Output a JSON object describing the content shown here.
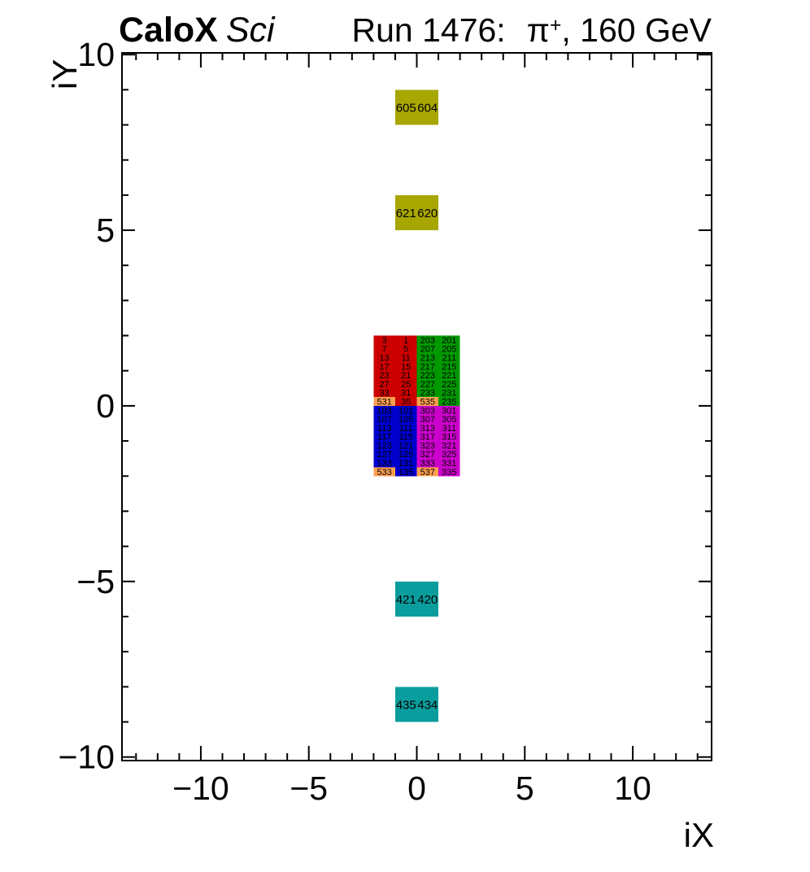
{
  "header": {
    "title_bold": "CaloX",
    "title_italic": "Sci",
    "run_prefix": "Run 1476:",
    "particle": "π",
    "charge": "+",
    "run_suffix": ", 160 GeV"
  },
  "chart_data": {
    "type": "heatmap",
    "title": "Run 1476: π+, 160 GeV",
    "xlabel": "iX",
    "ylabel": "iY",
    "xlim": [
      -13.65,
      13.65
    ],
    "ylim": [
      -10.1,
      10.05
    ],
    "grid": false,
    "xticks": {
      "values": [
        -10,
        -5,
        0,
        5,
        10
      ],
      "labels": [
        "−10",
        "−5",
        "0",
        "5",
        "10"
      ],
      "minor_step": 1
    },
    "yticks": {
      "values": [
        -10,
        -5,
        0,
        5,
        10
      ],
      "labels": [
        "−10",
        "−5",
        "0",
        "5",
        "10"
      ],
      "minor_step": 1
    },
    "colors": {
      "red": "#cc0000",
      "green": "#009900",
      "blue": "#0000cc",
      "magenta": "#cc00cc",
      "olive": "#a8a600",
      "teal": "#0a9d9d",
      "orange": "#ffa050"
    },
    "cells": [
      [
        -1,
        8,
        1,
        1,
        "olive",
        "605"
      ],
      [
        0,
        8,
        1,
        1,
        "olive",
        "604"
      ],
      [
        -1,
        5,
        1,
        1,
        "olive",
        "621"
      ],
      [
        0,
        5,
        1,
        1,
        "olive",
        "620"
      ],
      [
        -1,
        -6,
        1,
        1,
        "teal",
        "421"
      ],
      [
        0,
        -6,
        1,
        1,
        "teal",
        "420"
      ],
      [
        -1,
        -9,
        1,
        1,
        "teal",
        "435"
      ],
      [
        0,
        -9,
        1,
        1,
        "teal",
        "434"
      ],
      [
        -2,
        1.75,
        1,
        0.25,
        "red",
        "3"
      ],
      [
        -1,
        1.75,
        1,
        0.25,
        "red",
        "1"
      ],
      [
        0,
        1.75,
        1,
        0.25,
        "green",
        "203"
      ],
      [
        1,
        1.75,
        1,
        0.25,
        "green",
        "201"
      ],
      [
        -2,
        1.5,
        1,
        0.25,
        "red",
        "7"
      ],
      [
        -1,
        1.5,
        1,
        0.25,
        "red",
        "5"
      ],
      [
        0,
        1.5,
        1,
        0.25,
        "green",
        "207"
      ],
      [
        1,
        1.5,
        1,
        0.25,
        "green",
        "205"
      ],
      [
        -2,
        1.25,
        1,
        0.25,
        "red",
        "13"
      ],
      [
        -1,
        1.25,
        1,
        0.25,
        "red",
        "11"
      ],
      [
        0,
        1.25,
        1,
        0.25,
        "green",
        "213"
      ],
      [
        1,
        1.25,
        1,
        0.25,
        "green",
        "211"
      ],
      [
        -2,
        1,
        1,
        0.25,
        "red",
        "17"
      ],
      [
        -1,
        1,
        1,
        0.25,
        "red",
        "15"
      ],
      [
        0,
        1,
        1,
        0.25,
        "green",
        "217"
      ],
      [
        1,
        1,
        1,
        0.25,
        "green",
        "215"
      ],
      [
        -2,
        0.75,
        1,
        0.25,
        "red",
        "23"
      ],
      [
        -1,
        0.75,
        1,
        0.25,
        "red",
        "21"
      ],
      [
        0,
        0.75,
        1,
        0.25,
        "green",
        "223"
      ],
      [
        1,
        0.75,
        1,
        0.25,
        "green",
        "221"
      ],
      [
        -2,
        0.5,
        1,
        0.25,
        "red",
        "27"
      ],
      [
        -1,
        0.5,
        1,
        0.25,
        "red",
        "25"
      ],
      [
        0,
        0.5,
        1,
        0.25,
        "green",
        "227"
      ],
      [
        1,
        0.5,
        1,
        0.25,
        "green",
        "225"
      ],
      [
        -2,
        0.25,
        1,
        0.25,
        "red",
        "33"
      ],
      [
        -1,
        0.25,
        1,
        0.25,
        "red",
        "31"
      ],
      [
        0,
        0.25,
        1,
        0.25,
        "green",
        "233"
      ],
      [
        1,
        0.25,
        1,
        0.25,
        "green",
        "231"
      ],
      [
        -2,
        0,
        1,
        0.25,
        "orange",
        "531"
      ],
      [
        -1,
        0,
        1,
        0.25,
        "red",
        "35"
      ],
      [
        0,
        0,
        1,
        0.25,
        "orange",
        "535"
      ],
      [
        1,
        0,
        1,
        0.25,
        "green",
        "235"
      ],
      [
        -2,
        -0.25,
        1,
        0.25,
        "blue",
        "103"
      ],
      [
        -1,
        -0.25,
        1,
        0.25,
        "blue",
        "101"
      ],
      [
        0,
        -0.25,
        1,
        0.25,
        "magenta",
        "303"
      ],
      [
        1,
        -0.25,
        1,
        0.25,
        "magenta",
        "301"
      ],
      [
        -2,
        -0.5,
        1,
        0.25,
        "blue",
        "107"
      ],
      [
        -1,
        -0.5,
        1,
        0.25,
        "blue",
        "105"
      ],
      [
        0,
        -0.5,
        1,
        0.25,
        "magenta",
        "307"
      ],
      [
        1,
        -0.5,
        1,
        0.25,
        "magenta",
        "305"
      ],
      [
        -2,
        -0.75,
        1,
        0.25,
        "blue",
        "113"
      ],
      [
        -1,
        -0.75,
        1,
        0.25,
        "blue",
        "111"
      ],
      [
        0,
        -0.75,
        1,
        0.25,
        "magenta",
        "313"
      ],
      [
        1,
        -0.75,
        1,
        0.25,
        "magenta",
        "311"
      ],
      [
        -2,
        -1,
        1,
        0.25,
        "blue",
        "117"
      ],
      [
        -1,
        -1,
        1,
        0.25,
        "blue",
        "115"
      ],
      [
        0,
        -1,
        1,
        0.25,
        "magenta",
        "317"
      ],
      [
        1,
        -1,
        1,
        0.25,
        "magenta",
        "315"
      ],
      [
        -2,
        -1.25,
        1,
        0.25,
        "blue",
        "123"
      ],
      [
        -1,
        -1.25,
        1,
        0.25,
        "blue",
        "121"
      ],
      [
        0,
        -1.25,
        1,
        0.25,
        "magenta",
        "323"
      ],
      [
        1,
        -1.25,
        1,
        0.25,
        "magenta",
        "321"
      ],
      [
        -2,
        -1.5,
        1,
        0.25,
        "blue",
        "127"
      ],
      [
        -1,
        -1.5,
        1,
        0.25,
        "blue",
        "125"
      ],
      [
        0,
        -1.5,
        1,
        0.25,
        "magenta",
        "327"
      ],
      [
        1,
        -1.5,
        1,
        0.25,
        "magenta",
        "325"
      ],
      [
        -2,
        -1.75,
        1,
        0.25,
        "blue",
        "133"
      ],
      [
        -1,
        -1.75,
        1,
        0.25,
        "blue",
        "131"
      ],
      [
        0,
        -1.75,
        1,
        0.25,
        "magenta",
        "333"
      ],
      [
        1,
        -1.75,
        1,
        0.25,
        "magenta",
        "331"
      ],
      [
        -2,
        -2,
        1,
        0.25,
        "orange",
        "533"
      ],
      [
        -1,
        -2,
        1,
        0.25,
        "blue",
        "135"
      ],
      [
        0,
        -2,
        1,
        0.25,
        "orange",
        "537"
      ],
      [
        1,
        -2,
        1,
        0.25,
        "magenta",
        "335"
      ]
    ]
  }
}
